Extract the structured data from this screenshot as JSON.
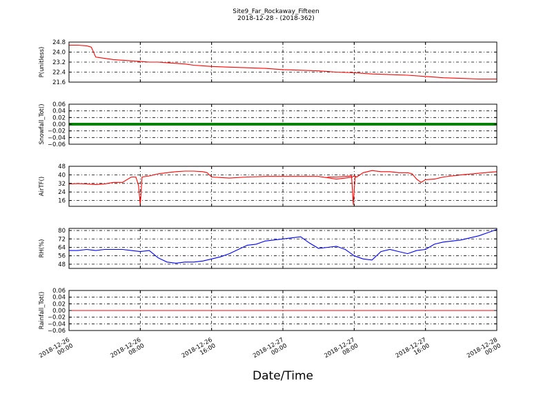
{
  "chart_data": {
    "type": "line",
    "title": "Site9_Far_Rockaway_Fifteen",
    "subtitle": "2018-12-28 - (2018-362)",
    "xlabel": "Date/Time",
    "x_ticks": [
      "2018-12-26|00:00",
      "2018-12-26|08:00",
      "2018-12-26|16:00",
      "2018-12-27|00:00",
      "2018-12-27|08:00",
      "2018-12-27|16:00",
      "2018-12-28|00:00"
    ],
    "x_range_hours": [
      0,
      48
    ],
    "grid": true,
    "panels": [
      {
        "ylabel": "P(unitless)",
        "ylim": [
          21.6,
          24.8
        ],
        "yticks": [
          "24.8",
          "24.0",
          "23.2",
          "22.4",
          "21.6"
        ],
        "tick_values": [
          24.8,
          24.0,
          23.2,
          22.4,
          21.6
        ],
        "color": "#ff0000",
        "series": [
          {
            "x": [
              0,
              1,
              2,
              2.5,
              3,
              4,
              5,
              6,
              7,
              8,
              9,
              10,
              11,
              12,
              13,
              14,
              15,
              16,
              18,
              20,
              22,
              24,
              26,
              28,
              30,
              32,
              34,
              36,
              38,
              40,
              42,
              44,
              46,
              48
            ],
            "y": [
              24.55,
              24.55,
              24.5,
              24.4,
              23.6,
              23.5,
              23.4,
              23.35,
              23.3,
              23.25,
              23.2,
              23.2,
              23.15,
              23.1,
              23.05,
              22.95,
              22.9,
              22.85,
              22.8,
              22.75,
              22.7,
              22.6,
              22.55,
              22.5,
              22.4,
              22.35,
              22.25,
              22.2,
              22.15,
              22.05,
              21.95,
              21.9,
              21.85,
              21.85
            ]
          }
        ]
      },
      {
        "ylabel": "Snowfall_Tot()",
        "ylim": [
          -0.06,
          0.06
        ],
        "yticks": [
          "0.06",
          "0.04",
          "0.02",
          "0.00",
          "−0.02",
          "−0.04",
          "−0.06"
        ],
        "tick_values": [
          0.06,
          0.04,
          0.02,
          0.0,
          -0.02,
          -0.04,
          -0.06
        ],
        "color": "#008000",
        "style": "thick",
        "series": [
          {
            "x": [
              0,
              48
            ],
            "y": [
              0,
              0
            ]
          }
        ]
      },
      {
        "ylabel": "AirTF()",
        "ylim": [
          10.6,
          48
        ],
        "yticks": [
          "48",
          "40",
          "32",
          "24",
          "16"
        ],
        "tick_values": [
          48,
          40,
          32,
          24,
          16
        ],
        "color": "#ff0000",
        "series": [
          {
            "x": [
              0,
              1,
              2,
              3,
              4,
              5,
              6,
              7,
              7.5,
              7.8,
              8.0,
              8.2,
              9,
              10,
              11,
              12,
              13,
              14,
              15,
              15.5,
              16,
              17,
              18,
              20,
              22,
              24,
              26,
              28,
              30,
              31,
              31.8,
              32.0,
              32.3,
              33,
              34,
              35,
              36,
              37,
              38,
              38.5,
              39,
              39.5,
              40,
              41,
              42,
              44,
              46,
              48
            ],
            "y": [
              31.5,
              31.8,
              31.5,
              31,
              31.5,
              33,
              33,
              38,
              38,
              30,
              12,
              38,
              39,
              41,
              42,
              43,
              43.5,
              43.5,
              43,
              42,
              38,
              37.5,
              37,
              38,
              38.5,
              38.5,
              38.5,
              38.5,
              36,
              37,
              38,
              39,
              38,
              42,
              44,
              43,
              43,
              42,
              42,
              41,
              36,
              33,
              35.5,
              36,
              38,
              40,
              41.5,
              43
            ]
          },
          {
            "x": [
              29,
              30,
              31,
              31.7,
              31.9,
              32.1,
              32.3
            ],
            "y": [
              38,
              38,
              38.5,
              39,
              12,
              38,
              38
            ]
          }
        ]
      },
      {
        "ylabel": "RH(%)",
        "ylim": [
          44,
          82
        ],
        "yticks": [
          "80",
          "72",
          "64",
          "56",
          "48"
        ],
        "tick_values": [
          80,
          72,
          64,
          56,
          48
        ],
        "color": "#0000ff",
        "series": [
          {
            "x": [
              0,
              1,
              2,
              3,
              4,
              5,
              6,
              7,
              8,
              9,
              10,
              11,
              12,
              13,
              14,
              15,
              16,
              17,
              18,
              19,
              20,
              21,
              22,
              23,
              24,
              25,
              26,
              27,
              28,
              29,
              30,
              31,
              32,
              33,
              34,
              35,
              36,
              37,
              38,
              39,
              40,
              41,
              42,
              43,
              44,
              45,
              46,
              47,
              48
            ],
            "y": [
              61,
              61,
              62,
              61,
              62,
              62,
              62,
              61,
              60,
              61,
              54,
              50,
              49,
              50,
              50,
              51,
              53,
              55,
              58,
              62,
              66,
              67,
              70,
              71,
              72,
              73,
              74,
              68,
              63,
              64,
              65,
              62,
              56,
              53,
              52,
              60,
              62,
              60,
              58,
              61,
              62,
              67,
              69,
              70,
              71,
              73,
              75,
              78,
              81
            ]
          }
        ]
      },
      {
        "ylabel": "Rainfall_Tot()",
        "ylim": [
          -0.06,
          0.06
        ],
        "yticks": [
          "0.06",
          "0.04",
          "0.02",
          "0.00",
          "−0.02",
          "−0.04",
          "−0.06"
        ],
        "tick_values": [
          0.06,
          0.04,
          0.02,
          0.0,
          -0.02,
          -0.04,
          -0.06
        ],
        "color": "#ff0000",
        "series": [
          {
            "x": [
              0,
              48
            ],
            "y": [
              0,
              0
            ]
          }
        ]
      }
    ]
  }
}
